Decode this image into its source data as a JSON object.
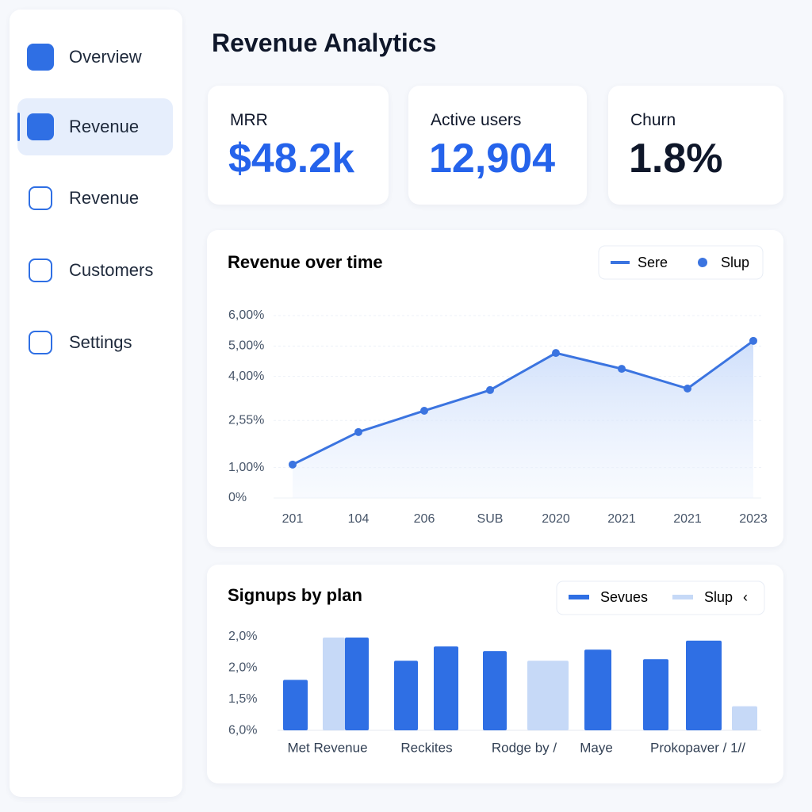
{
  "title": "Revenue Analytics",
  "nav": [
    {
      "label": "Overview"
    },
    {
      "label": "Revenue",
      "active": true
    },
    {
      "label": "Revenue"
    },
    {
      "label": "Customers"
    },
    {
      "label": "Settings"
    }
  ],
  "kpis": [
    {
      "label": "MRR",
      "value": "$48.2k",
      "color": "#2563eb"
    },
    {
      "label": "Active users",
      "value": "12,904",
      "color": "#2563eb"
    },
    {
      "label": "Churn",
      "value": "1.8%",
      "color": "#0f172a"
    }
  ],
  "chart_data": [
    {
      "type": "line",
      "title": "Revenue over time",
      "legend": [
        "Sere",
        "Slup"
      ],
      "color": "#3b74e0",
      "categories": [
        "201",
        "104",
        "206",
        "SUB",
        "2020",
        "2021",
        "2021",
        "2023"
      ],
      "series": [
        {
          "name": "Sere",
          "color": "#3b74e0",
          "values": [
            1.1,
            2.17,
            2.87,
            3.55,
            4.77,
            4.25,
            3.6,
            5.17
          ]
        }
      ],
      "ylim": [
        0,
        6
      ],
      "yticks": [
        {
          "value": 0,
          "label": "0%"
        },
        {
          "value": 1,
          "label": "1,00%"
        },
        {
          "value": 2.55,
          "label": "2,55%"
        },
        {
          "value": 4,
          "label": "4,00%"
        },
        {
          "value": 5,
          "label": "5,00%"
        },
        {
          "value": 6,
          "label": "6,00%"
        }
      ],
      "grid": true
    },
    {
      "type": "bar",
      "title": "Signups by plan",
      "series": [
        {
          "name": "Sevues",
          "color": "#2f6fe4"
        },
        {
          "name": "Slup",
          "color": "#c6d9f7"
        }
      ],
      "categories": [
        "Met Revenue",
        "Reckites",
        "Rodge by /",
        "Maye",
        "Prokopaver / 1//"
      ],
      "ylabels": [
        "2,0%",
        "2,0%",
        "1,5%",
        "6,0%"
      ],
      "ylim": [
        0,
        3
      ],
      "bars": [
        {
          "value": 1.63,
          "series": 0
        },
        {
          "value": 3,
          "series": 1
        },
        {
          "value": 3,
          "series": 0
        },
        {
          "value": 2.25,
          "series": 0
        },
        {
          "value": 2.71,
          "series": 0
        },
        {
          "value": 2.56,
          "series": 0
        },
        {
          "value": 2.25,
          "series": 1
        },
        {
          "value": 2.61,
          "series": 0
        },
        {
          "value": 2.3,
          "series": 0
        },
        {
          "value": 2.9,
          "series": 0
        },
        {
          "value": 0.78,
          "series": 1
        }
      ]
    }
  ]
}
